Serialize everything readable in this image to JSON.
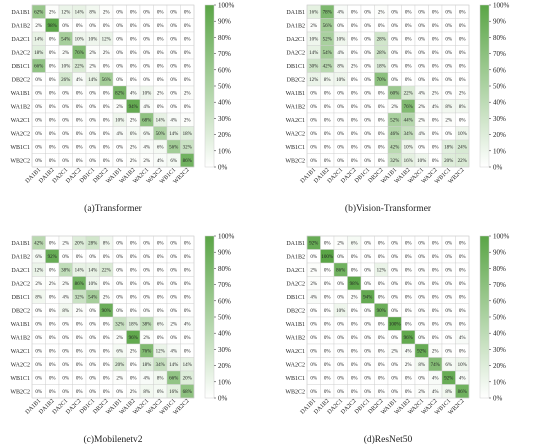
{
  "colors": {
    "accent_dark": "#5aa546",
    "accent_light": "#ffffff",
    "grid": "#cfcfcf",
    "text": "#222222"
  },
  "chart_data": [
    {
      "type": "heatmap",
      "title": "(a)Transformer",
      "categories": [
        "DA1B1",
        "DA1B2",
        "DA2C1",
        "DA2C2",
        "DB1C1",
        "DB2C2",
        "WA1B1",
        "WA1B2",
        "WA2C1",
        "WA2C2",
        "WB1C1",
        "WB2C2"
      ],
      "colorbar_ticks": [
        "0%",
        "10%",
        "20%",
        "30%",
        "40%",
        "50%",
        "60%",
        "70%",
        "80%",
        "90%",
        "100%"
      ],
      "values": [
        [
          62,
          2,
          12,
          14,
          8,
          2,
          0,
          0,
          0,
          0,
          0,
          0
        ],
        [
          2,
          98,
          0,
          0,
          0,
          0,
          0,
          0,
          0,
          0,
          0,
          0
        ],
        [
          14,
          0,
          54,
          10,
          10,
          12,
          0,
          0,
          0,
          0,
          0,
          0
        ],
        [
          18,
          0,
          2,
          76,
          2,
          2,
          0,
          0,
          0,
          0,
          0,
          0
        ],
        [
          66,
          0,
          10,
          22,
          2,
          0,
          0,
          0,
          0,
          0,
          0,
          0
        ],
        [
          0,
          0,
          26,
          4,
          14,
          56,
          0,
          0,
          0,
          0,
          0,
          0
        ],
        [
          0,
          0,
          0,
          0,
          0,
          0,
          82,
          4,
          10,
          2,
          0,
          2
        ],
        [
          0,
          0,
          0,
          0,
          0,
          0,
          2,
          94,
          4,
          0,
          0,
          0
        ],
        [
          0,
          0,
          0,
          0,
          0,
          0,
          10,
          2,
          68,
          14,
          4,
          2
        ],
        [
          0,
          0,
          0,
          0,
          0,
          0,
          4,
          6,
          6,
          50,
          14,
          18
        ],
        [
          0,
          0,
          0,
          0,
          0,
          0,
          0,
          2,
          4,
          6,
          56,
          32
        ],
        [
          0,
          0,
          0,
          0,
          0,
          0,
          0,
          2,
          2,
          4,
          6,
          86
        ]
      ]
    },
    {
      "type": "heatmap",
      "title": "(b)Vision-Transformer",
      "categories": [
        "DA1B1",
        "DA1B2",
        "DA2C1",
        "DA2C2",
        "DB1C1",
        "DB2C2",
        "WA1B1",
        "WA1B2",
        "WA2C1",
        "WA2C2",
        "WB1C1",
        "WB2C2"
      ],
      "colorbar_ticks": [
        "0%",
        "10%",
        "20%",
        "30%",
        "40%",
        "50%",
        "60%",
        "70%",
        "80%",
        "90%",
        "100%"
      ],
      "values": [
        [
          16,
          78,
          4,
          0,
          0,
          2,
          0,
          0,
          0,
          0,
          0,
          0
        ],
        [
          2,
          56,
          0,
          0,
          0,
          0,
          0,
          0,
          0,
          0,
          0,
          0
        ],
        [
          10,
          52,
          10,
          0,
          0,
          28,
          0,
          0,
          0,
          0,
          0,
          0
        ],
        [
          14,
          54,
          4,
          0,
          0,
          28,
          0,
          0,
          0,
          0,
          0,
          0
        ],
        [
          30,
          42,
          8,
          2,
          0,
          18,
          0,
          0,
          0,
          0,
          0,
          0
        ],
        [
          12,
          8,
          10,
          0,
          0,
          70,
          0,
          0,
          0,
          0,
          0,
          0
        ],
        [
          0,
          0,
          0,
          0,
          0,
          0,
          60,
          22,
          4,
          2,
          0,
          2
        ],
        [
          0,
          0,
          0,
          0,
          0,
          0,
          2,
          76,
          2,
          4,
          8,
          8
        ],
        [
          0,
          0,
          0,
          0,
          0,
          0,
          52,
          44,
          2,
          0,
          2,
          0
        ],
        [
          0,
          0,
          0,
          0,
          0,
          0,
          46,
          34,
          4,
          0,
          0,
          10
        ],
        [
          0,
          0,
          0,
          0,
          0,
          0,
          42,
          10,
          0,
          0,
          18,
          24
        ],
        [
          0,
          0,
          0,
          0,
          0,
          0,
          32,
          16,
          10,
          0,
          20,
          22
        ]
      ]
    },
    {
      "type": "heatmap",
      "title": "(c)Mobilenetv2",
      "categories": [
        "DA1B1",
        "DA1B2",
        "DA2C1",
        "DA2C2",
        "DB1C1",
        "DB2C2",
        "WA1B1",
        "WA1B2",
        "WA2C1",
        "WA2C2",
        "WB1C1",
        "WB2C2"
      ],
      "colorbar_ticks": [
        "0%",
        "10%",
        "20%",
        "30%",
        "40%",
        "50%",
        "60%",
        "70%",
        "80%",
        "90%",
        "100%"
      ],
      "values": [
        [
          42,
          0,
          2,
          20,
          28,
          8,
          0,
          0,
          0,
          0,
          0,
          0
        ],
        [
          6,
          92,
          0,
          0,
          0,
          0,
          0,
          0,
          0,
          0,
          0,
          0
        ],
        [
          12,
          0,
          38,
          14,
          14,
          22,
          0,
          0,
          0,
          0,
          0,
          0
        ],
        [
          2,
          2,
          2,
          86,
          10,
          0,
          0,
          0,
          0,
          0,
          0,
          0
        ],
        [
          8,
          0,
          4,
          32,
          54,
          2,
          0,
          0,
          0,
          0,
          0,
          0
        ],
        [
          0,
          0,
          8,
          2,
          0,
          90,
          0,
          0,
          0,
          0,
          0,
          0
        ],
        [
          0,
          0,
          0,
          0,
          0,
          0,
          32,
          18,
          38,
          6,
          2,
          4
        ],
        [
          0,
          0,
          0,
          0,
          0,
          0,
          2,
          96,
          2,
          0,
          0,
          0
        ],
        [
          0,
          0,
          0,
          0,
          0,
          0,
          6,
          2,
          76,
          12,
          4,
          0
        ],
        [
          0,
          0,
          0,
          0,
          0,
          0,
          20,
          0,
          18,
          34,
          14,
          14
        ],
        [
          0,
          0,
          0,
          0,
          0,
          0,
          2,
          0,
          4,
          8,
          66,
          20
        ],
        [
          0,
          0,
          0,
          0,
          0,
          0,
          0,
          2,
          8,
          6,
          16,
          68
        ]
      ]
    },
    {
      "type": "heatmap",
      "title": "(d)ResNet50",
      "categories": [
        "DA1B1",
        "DA1B2",
        "DA2C1",
        "DA2C2",
        "DB1C1",
        "DB2C2",
        "WA1B1",
        "WA1B2",
        "WA2C1",
        "WA2C2",
        "WB1C1",
        "WB2C2"
      ],
      "colorbar_ticks": [
        "0%",
        "10%",
        "20%",
        "30%",
        "40%",
        "50%",
        "60%",
        "70%",
        "80%",
        "90%",
        "100%"
      ],
      "values": [
        [
          92,
          0,
          2,
          6,
          0,
          0,
          0,
          0,
          0,
          0,
          0,
          0
        ],
        [
          0,
          100,
          0,
          0,
          0,
          0,
          0,
          0,
          0,
          0,
          0,
          0
        ],
        [
          2,
          0,
          86,
          0,
          0,
          12,
          0,
          0,
          0,
          0,
          0,
          0
        ],
        [
          2,
          0,
          0,
          98,
          0,
          0,
          0,
          0,
          0,
          0,
          0,
          0
        ],
        [
          4,
          0,
          0,
          2,
          94,
          0,
          0,
          0,
          0,
          0,
          0,
          0
        ],
        [
          0,
          0,
          10,
          0,
          0,
          90,
          0,
          0,
          0,
          0,
          0,
          0
        ],
        [
          0,
          0,
          0,
          0,
          0,
          0,
          100,
          0,
          0,
          0,
          0,
          0
        ],
        [
          0,
          0,
          0,
          0,
          0,
          0,
          0,
          96,
          0,
          0,
          0,
          4
        ],
        [
          0,
          0,
          0,
          0,
          0,
          0,
          2,
          4,
          92,
          2,
          0,
          0
        ],
        [
          0,
          0,
          0,
          0,
          0,
          0,
          0,
          2,
          8,
          74,
          6,
          10
        ],
        [
          0,
          0,
          0,
          0,
          0,
          0,
          0,
          0,
          0,
          4,
          92,
          4
        ],
        [
          0,
          0,
          0,
          0,
          0,
          0,
          0,
          0,
          2,
          4,
          8,
          86
        ]
      ]
    }
  ]
}
